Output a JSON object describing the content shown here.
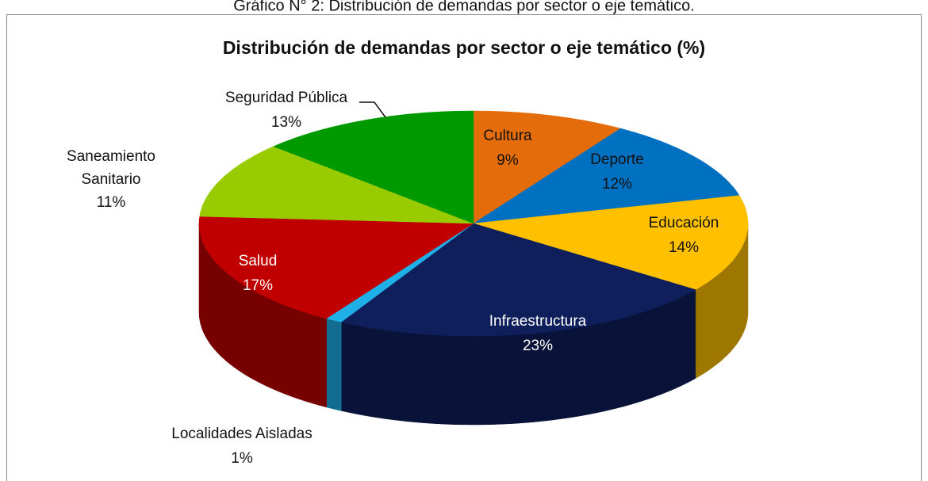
{
  "caption": "Gráfico N° 2: Distribución de demandas por sector o eje temático.",
  "chart_data": {
    "type": "pie3d",
    "title": "Distribución de demandas por sector o eje temático (%)",
    "categories": [
      "Cultura",
      "Deporte",
      "Educación",
      "Infraestructura",
      "Localidades Aisladas",
      "Salud",
      "Saneamiento Sanitario",
      "Seguridad Pública"
    ],
    "values": [
      9,
      12,
      14,
      23,
      1,
      17,
      11,
      13
    ],
    "value_labels": [
      "9%",
      "12%",
      "14%",
      "23%",
      "1%",
      "17%",
      "11%",
      "13%"
    ],
    "colors": [
      "#e46c0a",
      "#0070c0",
      "#ffc000",
      "#0f1f5c",
      "#1fb0e8",
      "#c00000",
      "#99cc00",
      "#009900"
    ]
  }
}
